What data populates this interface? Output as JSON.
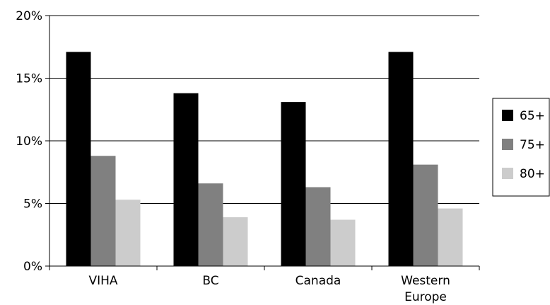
{
  "chart_data": {
    "type": "bar",
    "categories": [
      [
        "VIHA"
      ],
      [
        "BC"
      ],
      [
        "Canada"
      ],
      [
        "Western",
        "Europe"
      ]
    ],
    "series": [
      {
        "name": "65+",
        "values": [
          17.1,
          13.8,
          13.1,
          17.1
        ],
        "color": "#000000"
      },
      {
        "name": "75+",
        "values": [
          8.8,
          6.6,
          6.3,
          8.1
        ],
        "color": "#808080"
      },
      {
        "name": "80+",
        "values": [
          5.3,
          3.9,
          3.7,
          4.6
        ],
        "color": "#cccccc"
      }
    ],
    "yticks": [
      {
        "value": 0,
        "label": "0%"
      },
      {
        "value": 5,
        "label": "5%"
      },
      {
        "value": 10,
        "label": "10%"
      },
      {
        "value": 15,
        "label": "15%"
      },
      {
        "value": 20,
        "label": "20%"
      }
    ],
    "ylim": [
      0,
      20
    ],
    "grid": true,
    "legend_position": "right"
  }
}
